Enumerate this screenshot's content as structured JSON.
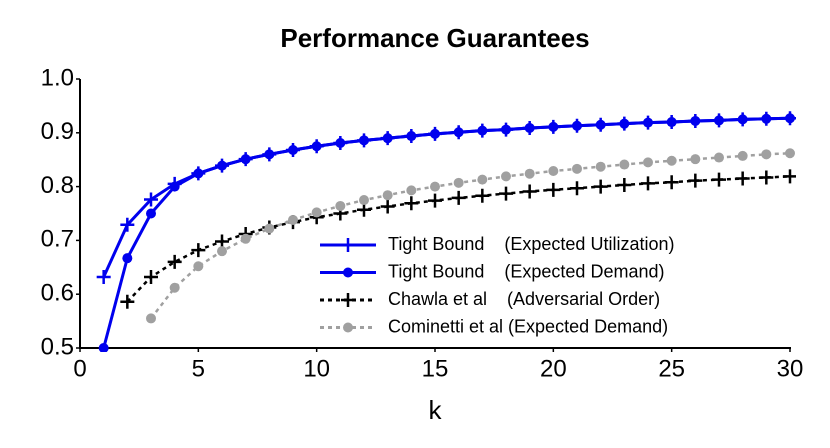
{
  "chart_data": {
    "type": "line",
    "title": "Performance Guarantees",
    "x_label": "k",
    "x": [
      1,
      2,
      3,
      4,
      5,
      6,
      7,
      8,
      9,
      10,
      11,
      12,
      13,
      14,
      15,
      16,
      17,
      18,
      19,
      20,
      21,
      22,
      23,
      24,
      25,
      26,
      27,
      28,
      29,
      30
    ],
    "series": [
      {
        "name": "Tight Bound    (Expected Utilization)",
        "color": "#0000ee",
        "marker": "plus",
        "dash": false,
        "values": [
          0.632,
          0.729,
          0.776,
          0.805,
          0.8245,
          0.839,
          0.851,
          0.86,
          0.868,
          0.875,
          0.881,
          0.886,
          0.89,
          0.894,
          0.898,
          0.901,
          0.904,
          0.906,
          0.909,
          0.911,
          0.913,
          0.915,
          0.917,
          0.919,
          0.92,
          0.922,
          0.923,
          0.925,
          0.926,
          0.927
        ]
      },
      {
        "name": "Tight Bound    (Expected Demand)",
        "color": "#0000ee",
        "marker": "circle",
        "dash": false,
        "values": [
          0.5,
          0.667,
          0.75,
          0.8,
          0.8245,
          0.839,
          0.851,
          0.86,
          0.868,
          0.875,
          0.881,
          0.886,
          0.89,
          0.894,
          0.898,
          0.901,
          0.904,
          0.906,
          0.909,
          0.911,
          0.913,
          0.915,
          0.917,
          0.919,
          0.92,
          0.922,
          0.923,
          0.925,
          0.926,
          0.927
        ]
      },
      {
        "name": "Chawla et al    (Adversarial Order)",
        "color": "#000000",
        "marker": "plus",
        "dash": true,
        "values": [
          null,
          0.586,
          0.632,
          0.66,
          0.682,
          0.698,
          0.712,
          0.724,
          0.734,
          0.743,
          0.75,
          0.757,
          0.763,
          0.769,
          0.774,
          0.779,
          0.783,
          0.787,
          0.791,
          0.794,
          0.797,
          0.8,
          0.803,
          0.806,
          0.808,
          0.811,
          0.813,
          0.815,
          0.817,
          0.819
        ]
      },
      {
        "name": "Cominetti et al (Expected Demand)",
        "color": "#a0a0a0",
        "marker": "circle",
        "dash": true,
        "values": [
          null,
          null,
          0.555,
          0.612,
          0.652,
          0.68,
          0.703,
          0.722,
          0.738,
          0.752,
          0.764,
          0.775,
          0.784,
          0.793,
          0.8,
          0.807,
          0.813,
          0.819,
          0.824,
          0.829,
          0.833,
          0.837,
          0.841,
          0.845,
          0.848,
          0.851,
          0.854,
          0.857,
          0.86,
          0.862
        ]
      }
    ],
    "xlim": [
      0,
      30
    ],
    "xticks": [
      0,
      5,
      10,
      15,
      20,
      25,
      30
    ],
    "ylim": [
      0.5,
      1.0
    ],
    "yticks": [
      0.5,
      0.6,
      0.7,
      0.8,
      0.9,
      {
        "value": 1.0,
        "label": "1.0"
      }
    ],
    "legend": "lower right",
    "grid": false
  }
}
